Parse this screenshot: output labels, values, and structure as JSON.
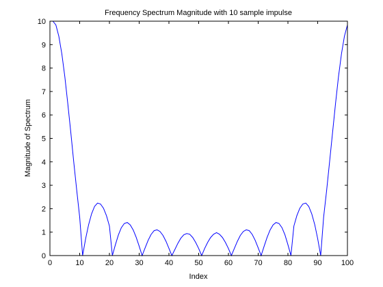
{
  "chart_data": {
    "type": "line",
    "title": "Frequency Spectrum Magnitude with 10 sample impulse",
    "xlabel": "Index",
    "ylabel": "Magnitude of Spectrum",
    "xlim": [
      0,
      100
    ],
    "ylim": [
      0,
      10
    ],
    "xticks": [
      0,
      10,
      20,
      30,
      40,
      50,
      60,
      70,
      80,
      90,
      100
    ],
    "yticks": [
      0,
      1,
      2,
      3,
      4,
      5,
      6,
      7,
      8,
      9,
      10
    ],
    "grid": false,
    "colors": {
      "line": "#0000ff",
      "axes": "#000000",
      "background": "#ffffff"
    },
    "series": [
      {
        "x": [
          1,
          2,
          3,
          4,
          5,
          6,
          7,
          8,
          9,
          10,
          11,
          12,
          13,
          14,
          15,
          16,
          17,
          18,
          19,
          20,
          21,
          22,
          23,
          24,
          25,
          26,
          27,
          28,
          29,
          30,
          31,
          32,
          33,
          34,
          35,
          36,
          37,
          38,
          39,
          40,
          41,
          42,
          43,
          44,
          45,
          46,
          47,
          48,
          49,
          50,
          51,
          52,
          53,
          54,
          55,
          56,
          57,
          58,
          59,
          60,
          61,
          62,
          63,
          64,
          65,
          66,
          67,
          68,
          69,
          70,
          71,
          72,
          73,
          74,
          75,
          76,
          77,
          78,
          79,
          80,
          81,
          82,
          83,
          84,
          85,
          86,
          87,
          88,
          89,
          90,
          91,
          92,
          93,
          94,
          95,
          96,
          97,
          98,
          99,
          100
        ],
        "values": [
          10.0,
          9.84,
          9.36,
          8.61,
          7.63,
          6.49,
          5.26,
          4.0,
          2.78,
          1.64,
          0.0,
          0.72,
          1.32,
          1.78,
          2.1,
          2.24,
          2.2,
          2.02,
          1.7,
          1.26,
          0.0,
          0.46,
          0.88,
          1.19,
          1.37,
          1.41,
          1.31,
          1.09,
          0.78,
          0.4,
          0.0,
          0.33,
          0.65,
          0.9,
          1.06,
          1.1,
          1.03,
          0.86,
          0.61,
          0.31,
          0.0,
          0.26,
          0.52,
          0.74,
          0.89,
          0.94,
          0.91,
          0.77,
          0.56,
          0.3,
          0.0,
          0.3,
          0.56,
          0.77,
          0.91,
          0.98,
          0.91,
          0.77,
          0.56,
          0.3,
          0.0,
          0.31,
          0.61,
          0.86,
          1.03,
          1.1,
          1.06,
          0.9,
          0.65,
          0.33,
          0.0,
          0.4,
          0.78,
          1.09,
          1.31,
          1.41,
          1.37,
          1.19,
          0.88,
          0.46,
          0.0,
          1.26,
          1.7,
          2.02,
          2.2,
          2.24,
          2.1,
          1.78,
          1.32,
          0.72,
          0.0,
          1.64,
          2.78,
          4.0,
          5.26,
          6.49,
          7.63,
          8.61,
          9.36,
          9.84
        ]
      }
    ]
  }
}
